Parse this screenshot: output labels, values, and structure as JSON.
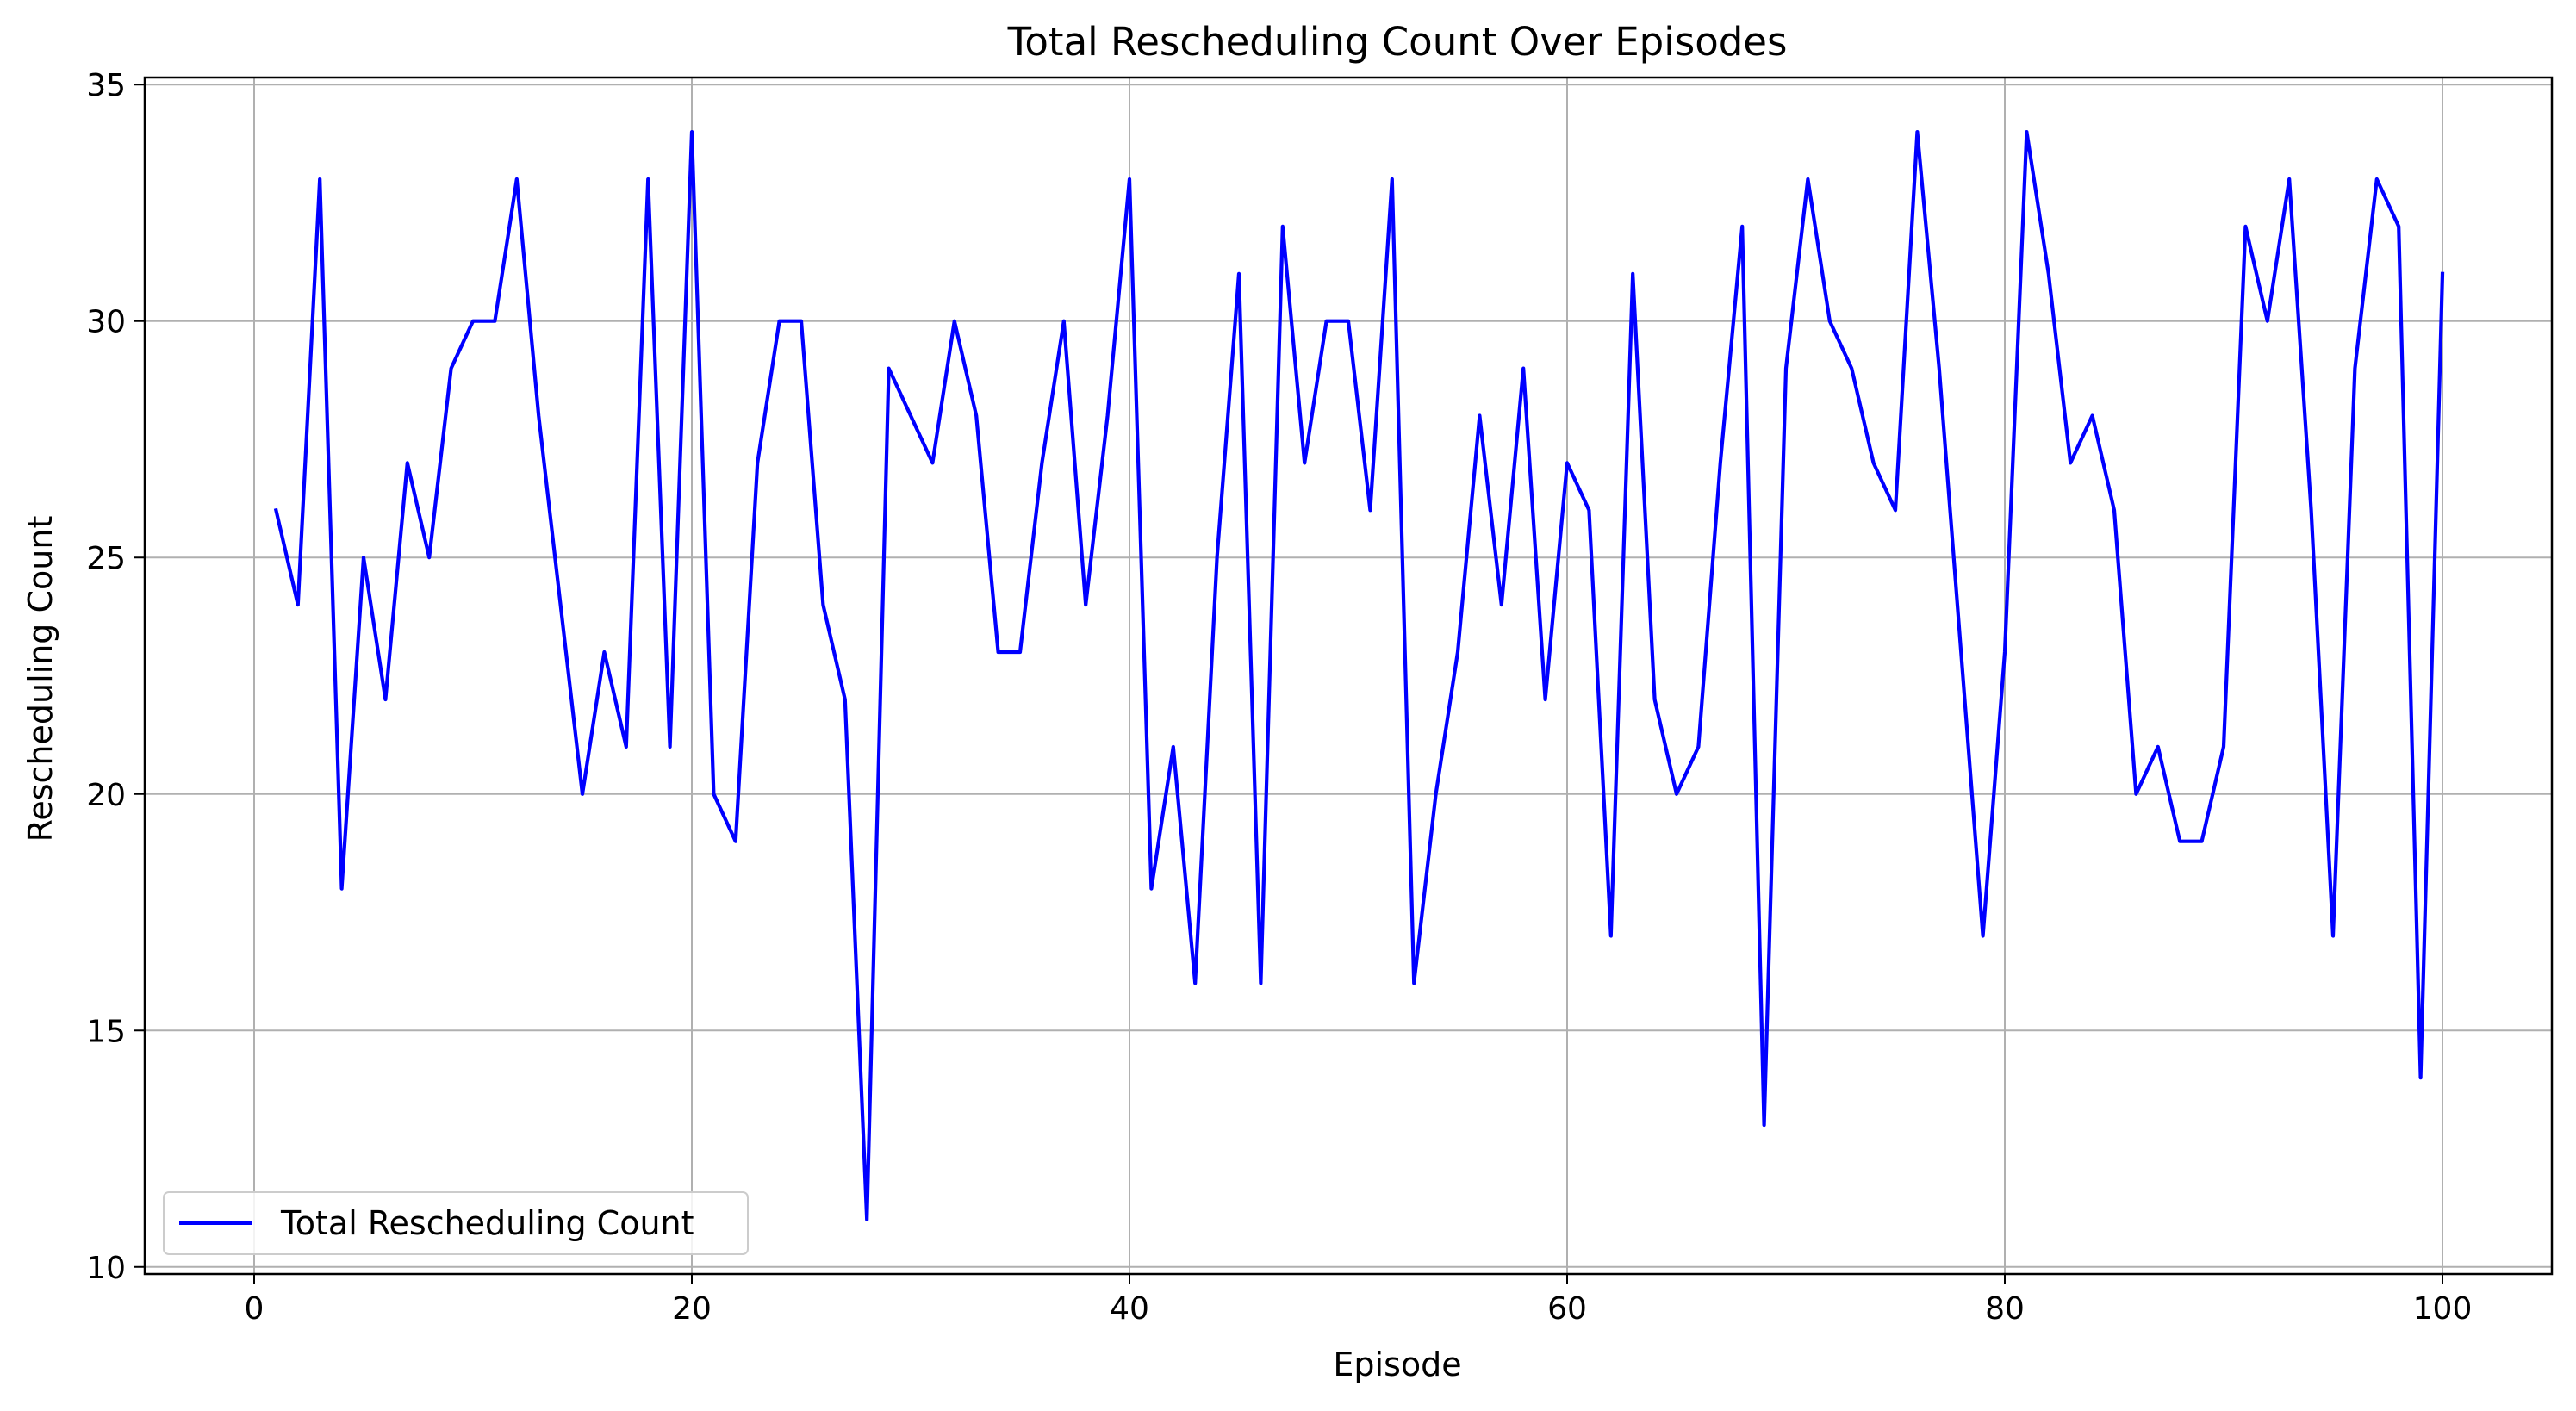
{
  "chart_data": {
    "type": "line",
    "title": "Total Rescheduling Count Over Episodes",
    "xlabel": "Episode",
    "ylabel": "Rescheduling Count",
    "xlim": [
      -5,
      105
    ],
    "ylim": [
      9.85,
      35.15
    ],
    "x_ticks": [
      0,
      20,
      40,
      60,
      80,
      100
    ],
    "y_ticks": [
      10,
      15,
      20,
      25,
      30,
      35
    ],
    "grid": true,
    "legend_position": "lower-left",
    "series": [
      {
        "name": "Total Rescheduling Count",
        "color": "#0000ff",
        "x": [
          1,
          2,
          3,
          4,
          5,
          6,
          7,
          8,
          9,
          10,
          11,
          12,
          13,
          14,
          15,
          16,
          17,
          18,
          19,
          20,
          21,
          22,
          23,
          24,
          25,
          26,
          27,
          28,
          29,
          30,
          31,
          32,
          33,
          34,
          35,
          36,
          37,
          38,
          39,
          40,
          41,
          42,
          43,
          44,
          45,
          46,
          47,
          48,
          49,
          50,
          51,
          52,
          53,
          54,
          55,
          56,
          57,
          58,
          59,
          60,
          61,
          62,
          63,
          64,
          65,
          66,
          67,
          68,
          69,
          70,
          71,
          72,
          73,
          74,
          75,
          76,
          77,
          78,
          79,
          80,
          81,
          82,
          83,
          84,
          85,
          86,
          87,
          88,
          89,
          90,
          91,
          92,
          93,
          94,
          95,
          96,
          97,
          98,
          99,
          100
        ],
        "values": [
          26,
          24,
          33,
          18,
          25,
          22,
          27,
          25,
          29,
          30,
          30,
          33,
          28,
          24,
          20,
          23,
          21,
          33,
          21,
          34,
          20,
          19,
          27,
          30,
          30,
          24,
          22,
          11,
          29,
          28,
          27,
          30,
          28,
          23,
          23,
          27,
          30,
          24,
          28,
          33,
          18,
          21,
          16,
          25,
          31,
          16,
          32,
          27,
          30,
          30,
          26,
          33,
          16,
          20,
          23,
          28,
          24,
          29,
          22,
          27,
          26,
          17,
          31,
          22,
          20,
          21,
          27,
          32,
          13,
          29,
          33,
          30,
          29,
          27,
          26,
          34,
          29,
          23,
          17,
          23,
          34,
          31,
          27,
          28,
          26,
          20,
          21,
          19,
          19,
          21,
          32,
          30,
          33,
          26,
          17,
          29,
          33,
          32,
          14,
          31
        ]
      }
    ]
  }
}
